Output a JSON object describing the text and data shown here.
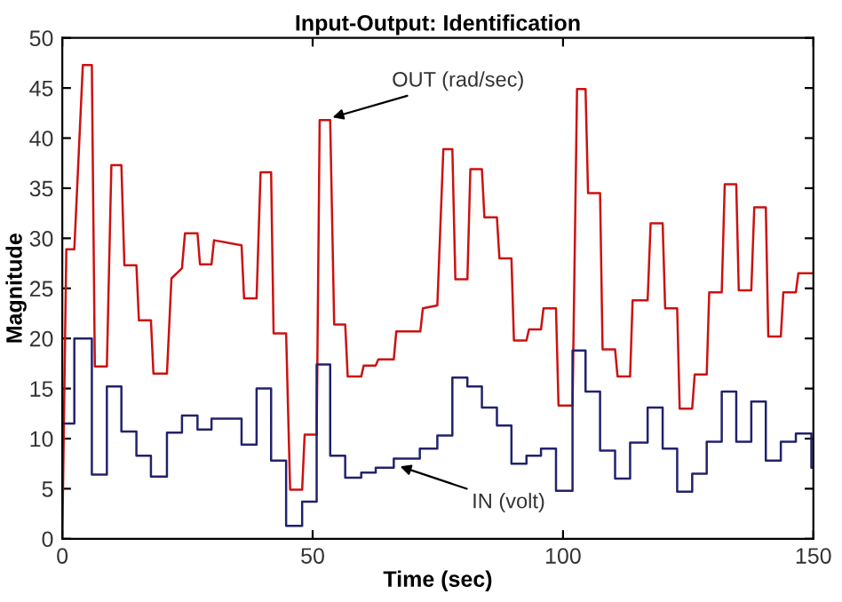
{
  "chart_data": {
    "type": "line",
    "title": "Input-Output: Identification",
    "xlabel": "Time (sec)",
    "ylabel": "Magnitude",
    "xlim": [
      0,
      150
    ],
    "ylim": [
      0,
      50
    ],
    "xticks": [
      0,
      50,
      100,
      150
    ],
    "yticks": [
      0,
      5,
      10,
      15,
      20,
      25,
      30,
      35,
      40,
      45,
      50
    ],
    "grid": false,
    "legend": false,
    "series": [
      {
        "color": "#cc1111",
        "x": [
          0,
          0.8,
          2.4,
          4.1,
          5.9,
          6.5,
          8.9,
          9.8,
          11.8,
          12.4,
          14.8,
          15.3,
          17.7,
          18.2,
          20.9,
          21.8,
          23.9,
          24.5,
          27.0,
          27.5,
          29.8,
          30.3,
          35.8,
          36.3,
          38.8,
          39.6,
          41.7,
          42.2,
          44.7,
          45.5,
          47.9,
          48.4,
          50.8,
          51.4,
          53.5,
          54.3,
          56.5,
          57.0,
          59.7,
          60.2,
          62.6,
          63.1,
          66.2,
          66.7,
          71.5,
          72.0,
          74.9,
          76.1,
          77.9,
          78.5,
          80.9,
          81.5,
          83.8,
          84.3,
          86.8,
          87.3,
          89.7,
          90.2,
          92.7,
          93.2,
          95.6,
          96.1,
          98.6,
          99.1,
          101.9,
          102.8,
          104.5,
          105.0,
          107.4,
          107.9,
          110.4,
          110.9,
          113.4,
          113.9,
          116.9,
          117.5,
          119.9,
          120.4,
          122.8,
          123.3,
          125.8,
          126.3,
          128.7,
          129.2,
          131.7,
          132.3,
          134.6,
          135.1,
          137.6,
          138.2,
          140.5,
          141.0,
          143.5,
          144.0,
          146.5,
          147.0,
          150
        ],
        "values": [
          0,
          28.9,
          28.9,
          47.3,
          47.3,
          17.2,
          17.2,
          37.3,
          37.3,
          27.3,
          27.3,
          21.8,
          21.8,
          16.5,
          16.5,
          26.0,
          27.0,
          30.5,
          30.5,
          27.4,
          27.4,
          29.8,
          29.3,
          24.0,
          24.0,
          36.6,
          36.6,
          20.5,
          20.5,
          4.9,
          4.9,
          10.4,
          10.4,
          41.8,
          41.8,
          21.4,
          21.4,
          16.2,
          16.2,
          17.3,
          17.3,
          17.9,
          17.9,
          20.7,
          20.7,
          23.0,
          23.3,
          38.9,
          38.9,
          25.9,
          25.9,
          36.9,
          36.9,
          32.1,
          32.1,
          28.0,
          28.0,
          19.8,
          19.8,
          20.9,
          20.9,
          23.0,
          23.0,
          13.3,
          13.3,
          44.9,
          44.9,
          34.5,
          34.5,
          18.9,
          18.9,
          16.2,
          16.2,
          23.8,
          23.8,
          31.5,
          31.5,
          23.0,
          23.0,
          13.0,
          13.0,
          16.4,
          16.4,
          24.6,
          24.6,
          35.4,
          35.4,
          24.8,
          24.8,
          33.1,
          33.1,
          20.2,
          20.2,
          24.6,
          24.6,
          26.5,
          26.5
        ]
      },
      {
        "type": "step",
        "color": "#22226e",
        "x": [
          0,
          2.4,
          5.9,
          8.9,
          11.8,
          14.8,
          17.7,
          20.9,
          23.9,
          27.0,
          29.8,
          35.8,
          38.8,
          41.7,
          44.7,
          47.9,
          50.8,
          53.5,
          56.5,
          59.7,
          62.6,
          66.2,
          71.4,
          74.9,
          77.9,
          80.9,
          83.8,
          86.8,
          89.7,
          92.7,
          95.6,
          98.6,
          101.9,
          104.5,
          107.4,
          110.4,
          113.4,
          116.9,
          119.9,
          122.8,
          125.8,
          128.7,
          131.7,
          134.6,
          137.6,
          140.5,
          143.5,
          146.5,
          149.6,
          150
        ],
        "values": [
          11.5,
          20.0,
          6.4,
          15.2,
          10.7,
          8.3,
          6.2,
          10.6,
          12.3,
          10.9,
          12.0,
          9.4,
          15.0,
          7.8,
          1.3,
          3.7,
          17.4,
          8.3,
          6.1,
          6.6,
          7.1,
          8.0,
          9.0,
          10.3,
          16.1,
          15.2,
          13.1,
          11.3,
          7.5,
          8.3,
          9.0,
          4.8,
          18.8,
          14.7,
          8.8,
          6.0,
          9.6,
          13.1,
          9.0,
          4.7,
          6.5,
          9.7,
          14.7,
          9.7,
          13.7,
          7.8,
          9.7,
          10.5,
          7.1,
          7.1
        ]
      }
    ],
    "annotations": [
      {
        "text": "OUT (rad/sec)",
        "x": 53.5,
        "y": 42
      },
      {
        "text": "IN (volt)",
        "x": 67,
        "y": 7.3
      }
    ]
  }
}
